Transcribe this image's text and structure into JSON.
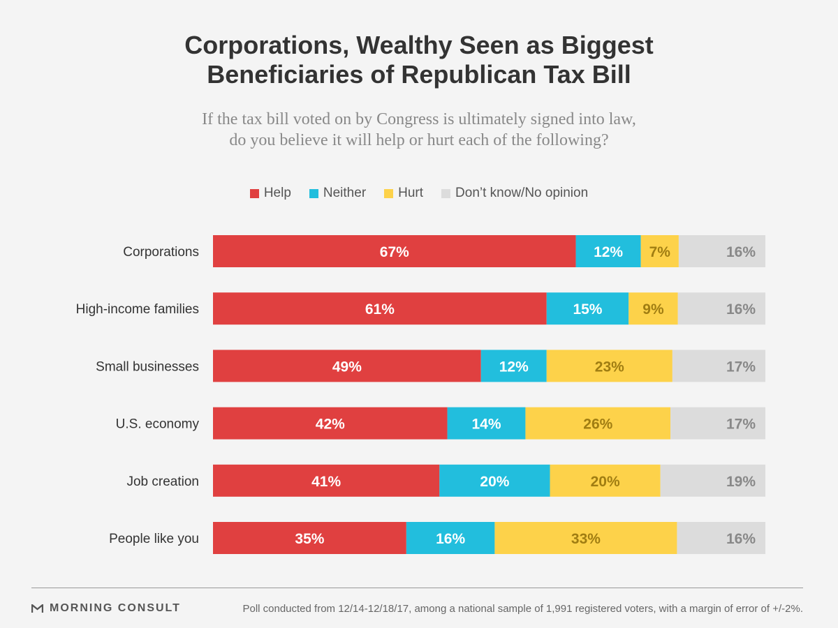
{
  "title": {
    "line1": "Corporations, Wealthy Seen as Biggest",
    "line2": "Beneficiaries of Republican Tax Bill"
  },
  "subtitle": {
    "line1": "If the tax bill voted on by Congress is ultimately signed into law,",
    "line2": "do you believe it will help or hurt each of the following?"
  },
  "footer": {
    "brand": "MORNING CONSULT",
    "brand_icon": "morning-consult-logo-icon",
    "note": "Poll conducted from 12/14-12/18/17, among a national sample of 1,991 registered voters, with a margin of error of +/-2%."
  },
  "chart_data": {
    "type": "bar",
    "orientation": "horizontal",
    "stacked": true,
    "title": "Corporations, Wealthy Seen as Biggest Beneficiaries of Republican Tax Bill",
    "subtitle": "If the tax bill voted on by Congress is ultimately signed into law, do you believe it will help or hurt each of the following?",
    "xlabel": "",
    "ylabel": "",
    "xlim": [
      0,
      102
    ],
    "grid": false,
    "legend_position": "top-center",
    "value_format": "{v}%",
    "categories": [
      "Corporations",
      "High-income families",
      "Small businesses",
      "U.S. economy",
      "Job creation",
      "People like you"
    ],
    "series": [
      {
        "name": "Help",
        "color": "#e04040",
        "label_color": "#ffffff",
        "values": [
          67,
          61,
          49,
          42,
          41,
          35
        ]
      },
      {
        "name": "Neither",
        "color": "#22bedd",
        "label_color": "#ffffff",
        "values": [
          12,
          15,
          12,
          14,
          20,
          16
        ]
      },
      {
        "name": "Hurt",
        "color": "#fdd24a",
        "label_color": "#a07d12",
        "values": [
          7,
          9,
          23,
          26,
          20,
          33
        ]
      },
      {
        "name": "Don’t know/No opinion",
        "color": "#dcdcdc",
        "label_color": "#888888",
        "values": [
          16,
          16,
          17,
          17,
          19,
          16
        ]
      }
    ]
  }
}
